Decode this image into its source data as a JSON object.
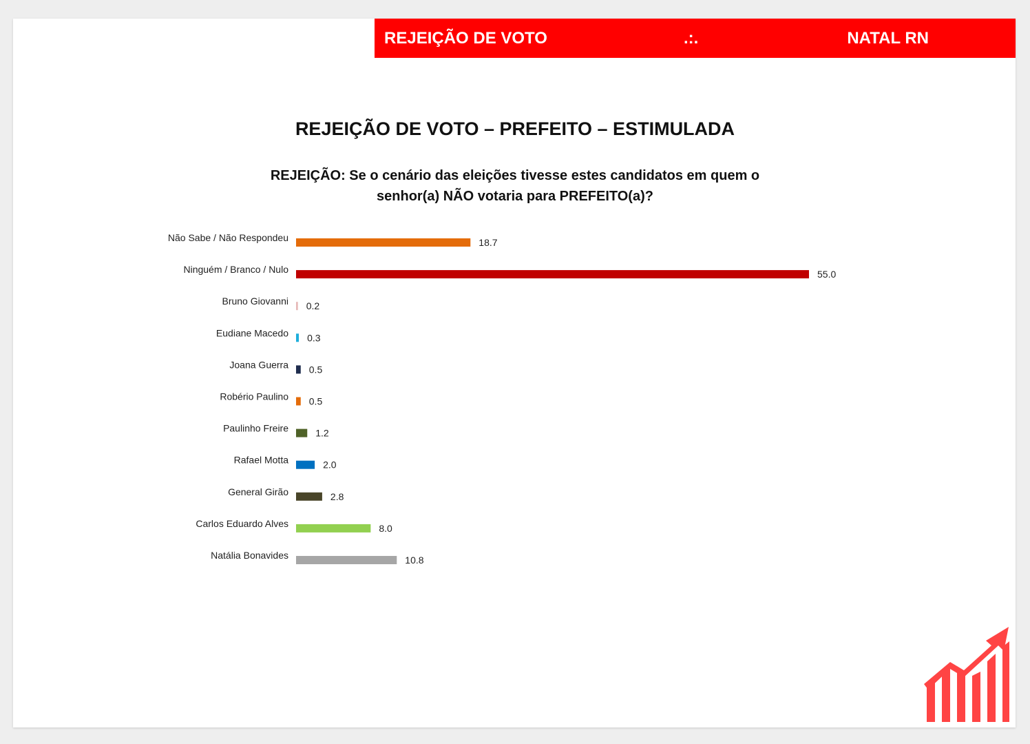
{
  "header": {
    "left_text": "REJEIÇÃO DE VOTO",
    "mid_text": ".:.",
    "right_text": "NATAL RN"
  },
  "colors": {
    "header_bg": "#ff0000",
    "logo": "#ff4444"
  },
  "icons": {
    "logo": "rising-bars-arrow-icon"
  },
  "chart_data": {
    "type": "bar",
    "orientation": "horizontal",
    "title": "REJEIÇÃO DE VOTO – PREFEITO – ESTIMULADA",
    "subtitle_line1": "REJEIÇÃO: Se o cenário das eleições tivesse estes candidatos em quem o",
    "subtitle_line2": "senhor(a) NÃO votaria para PREFEITO(a)?",
    "xlim": [
      0,
      55
    ],
    "grid": false,
    "categories": [
      "Não Sabe / Não Respondeu",
      "Ninguém / Branco / Nulo",
      "Bruno Giovanni",
      "Eudiane Macedo",
      "Joana Guerra",
      "Robério Paulino",
      "Paulinho Freire",
      "Rafael Motta",
      "General Girão",
      "Carlos Eduardo Alves",
      "Natália Bonavides"
    ],
    "values": [
      18.7,
      55.0,
      0.2,
      0.3,
      0.5,
      0.5,
      1.2,
      2.0,
      2.8,
      8.0,
      10.8
    ],
    "value_labels": [
      "18.7",
      "55.0",
      "0.2",
      "0.3",
      "0.5",
      "0.5",
      "1.2",
      "2.0",
      "2.8",
      "8.0",
      "10.8"
    ],
    "colors": [
      "#e46c0a",
      "#c00000",
      "#e6b9b8",
      "#1eaedb",
      "#1f2d4e",
      "#e46c0a",
      "#4f6228",
      "#0070c0",
      "#494529",
      "#92d050",
      "#a6a6a6"
    ]
  }
}
